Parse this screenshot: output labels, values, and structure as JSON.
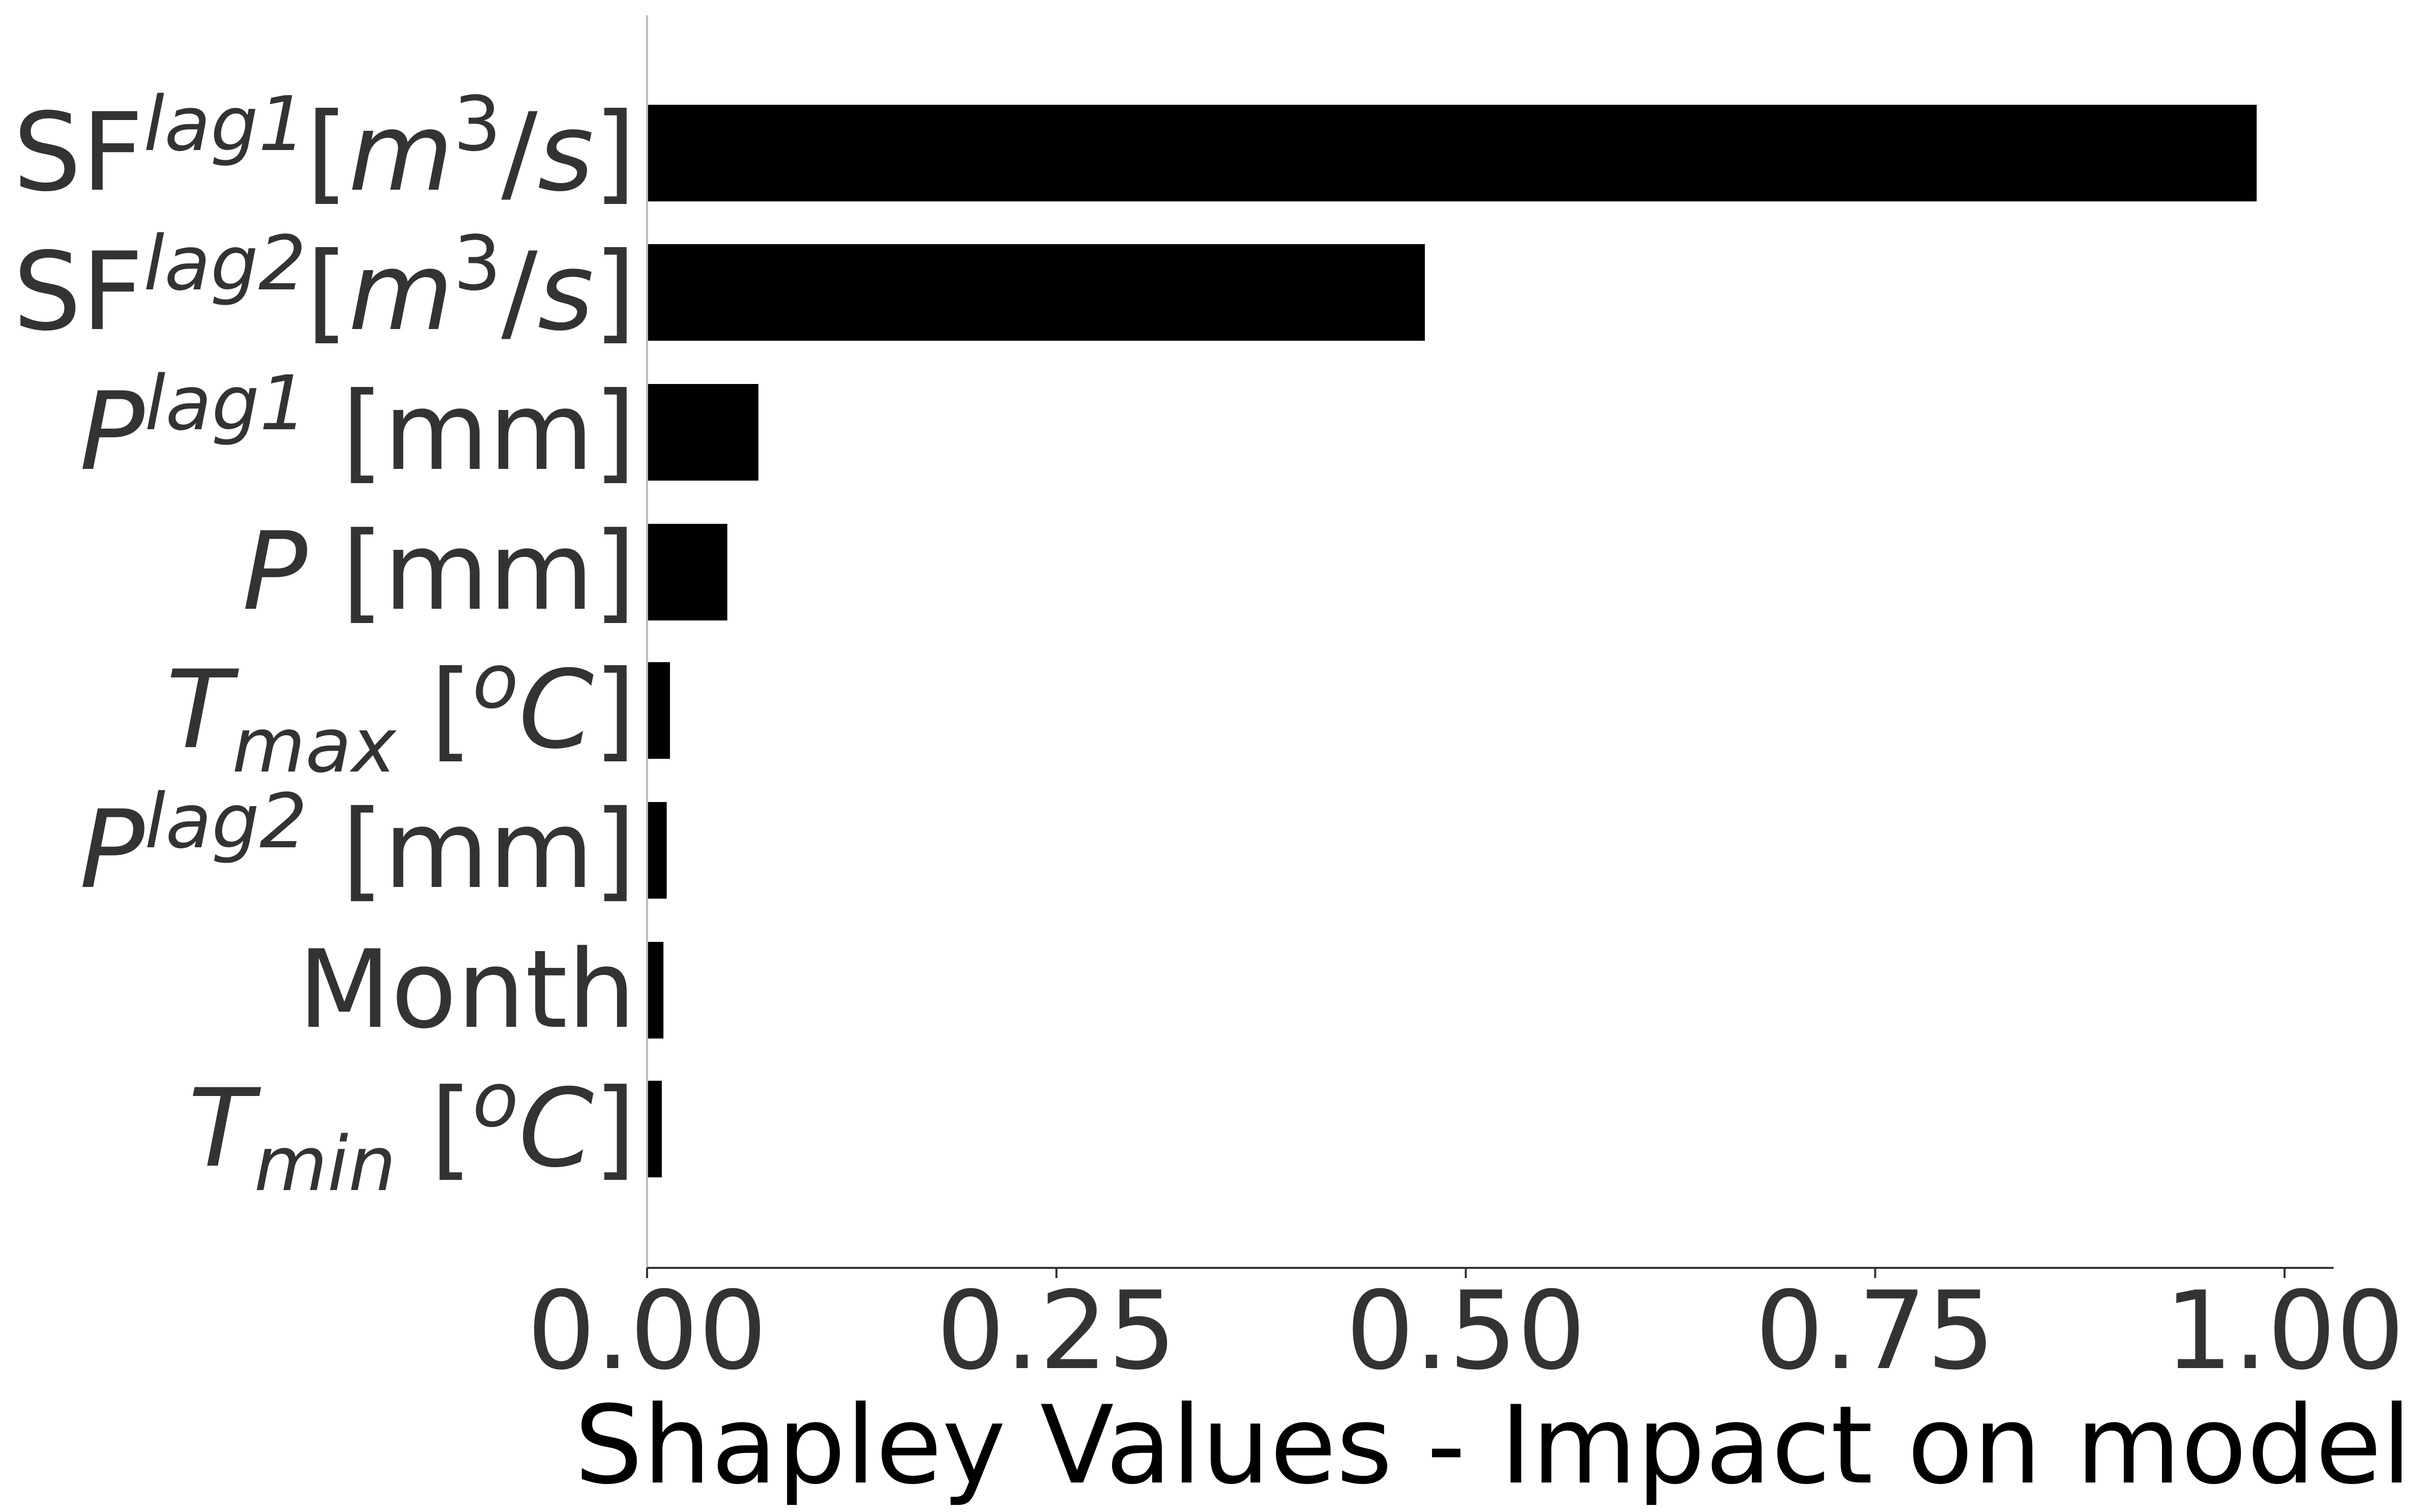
{
  "chart_data": {
    "type": "bar",
    "orientation": "horizontal",
    "title": "",
    "xlabel": "Shapley Values - Impact on model",
    "ylabel": "",
    "xlim": [
      0,
      1.03
    ],
    "xticks": [
      "0.00",
      "0.25",
      "0.50",
      "0.75",
      "1.00"
    ],
    "grid": false,
    "legend": "none",
    "bar_color": "#000000",
    "text_color": "#333333",
    "categories": [
      {
        "label": [
          {
            "t": "SF"
          },
          {
            "t": "lag1",
            "it": true,
            "sup": true
          },
          {
            "t": "["
          },
          {
            "t": "m",
            "it": true
          },
          {
            "t": "3",
            "sup": true
          },
          {
            "t": "/"
          },
          {
            "t": "s",
            "it": true
          },
          {
            "t": "]"
          }
        ]
      },
      {
        "label": [
          {
            "t": "SF"
          },
          {
            "t": "lag2",
            "it": true,
            "sup": true
          },
          {
            "t": "["
          },
          {
            "t": "m",
            "it": true
          },
          {
            "t": "3",
            "sup": true
          },
          {
            "t": "/"
          },
          {
            "t": "s",
            "it": true
          },
          {
            "t": "]"
          }
        ]
      },
      {
        "label": [
          {
            "t": "P",
            "it": true
          },
          {
            "t": "lag1",
            "it": true,
            "sup": true
          },
          {
            "t": " [mm]"
          }
        ]
      },
      {
        "label": [
          {
            "t": "P",
            "it": true
          },
          {
            "t": " [mm]"
          }
        ]
      },
      {
        "label": [
          {
            "t": "T",
            "it": true
          },
          {
            "t": "max",
            "it": true,
            "sub": true
          },
          {
            "t": " ["
          },
          {
            "t": "o",
            "it": true,
            "sup": true
          },
          {
            "t": "C",
            "it": true
          },
          {
            "t": "]"
          }
        ]
      },
      {
        "label": [
          {
            "t": "P",
            "it": true
          },
          {
            "t": "lag2",
            "it": true,
            "sup": true
          },
          {
            "t": " [mm]"
          }
        ]
      },
      {
        "label": [
          {
            "t": "Month"
          }
        ]
      },
      {
        "label": [
          {
            "t": "T",
            "it": true
          },
          {
            "t": "min",
            "it": true,
            "sub": true
          },
          {
            "t": " ["
          },
          {
            "t": "o",
            "it": true,
            "sup": true
          },
          {
            "t": "C",
            "it": true
          },
          {
            "t": "]"
          }
        ]
      }
    ],
    "values": [
      0.983,
      0.475,
      0.068,
      0.049,
      0.014,
      0.012,
      0.01,
      0.009
    ]
  }
}
